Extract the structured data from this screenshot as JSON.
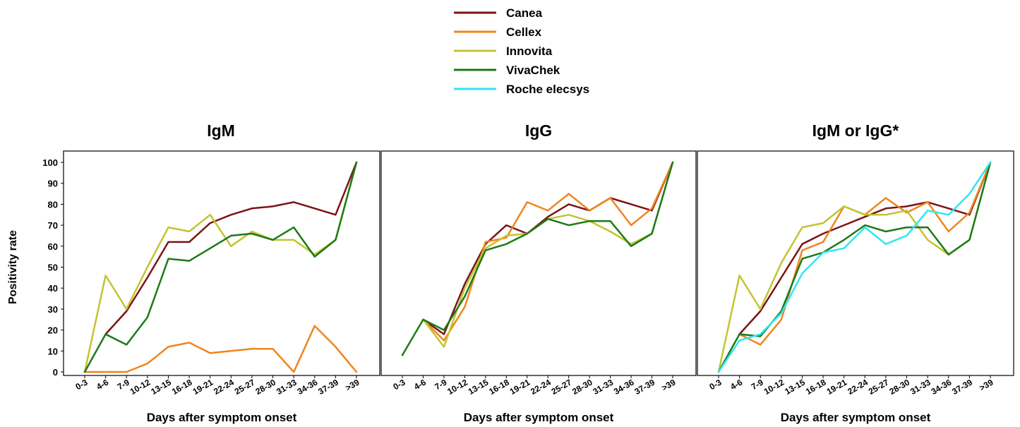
{
  "legend": {
    "items": [
      {
        "name": "Canea",
        "color": "#7b1416"
      },
      {
        "name": "Cellex",
        "color": "#f0851c"
      },
      {
        "name": "Innovita",
        "color": "#c3c430"
      },
      {
        "name": "VivaChek",
        "color": "#1d7a17"
      },
      {
        "name": "Roche elecsys",
        "color": "#2ee6f2"
      }
    ]
  },
  "chart_data": [
    {
      "type": "line",
      "title": "IgM",
      "xlabel": "Days after symptom onset",
      "ylabel": "Positivity rate",
      "ylim": [
        0,
        100
      ],
      "yticks": [
        0,
        10,
        20,
        30,
        40,
        50,
        60,
        70,
        80,
        90,
        100
      ],
      "categories": [
        "0-3",
        "4-6",
        "7-9",
        "10-12",
        "13-15",
        "16-18",
        "19-21",
        "22-24",
        "25-27",
        "28-30",
        "31-33",
        "34-36",
        "37-39",
        ">39"
      ],
      "series": [
        {
          "name": "Canea",
          "values": [
            null,
            18,
            29,
            45,
            62,
            62,
            71,
            75,
            78,
            79,
            81,
            78,
            75,
            100
          ]
        },
        {
          "name": "Cellex",
          "values": [
            0,
            0,
            0,
            4,
            12,
            14,
            9,
            10,
            11,
            11,
            0,
            22,
            12,
            0
          ]
        },
        {
          "name": "Innovita",
          "values": [
            0,
            46,
            30,
            50,
            69,
            67,
            75,
            60,
            67,
            63,
            63,
            56,
            63,
            100
          ]
        },
        {
          "name": "VivaChek",
          "values": [
            0,
            18,
            13,
            26,
            54,
            53,
            59,
            65,
            66,
            63,
            69,
            55,
            63,
            100
          ]
        }
      ]
    },
    {
      "type": "line",
      "title": "IgG",
      "xlabel": "Days after symptom onset",
      "ylim": [
        0,
        100
      ],
      "yticks": [
        0,
        10,
        20,
        30,
        40,
        50,
        60,
        70,
        80,
        90,
        100
      ],
      "categories": [
        "0-3",
        "4-6",
        "7-9",
        "10-12",
        "13-15",
        "16-18",
        "19-21",
        "22-24",
        "25-27",
        "28-30",
        "31-33",
        "34-36",
        "37-39",
        ">39"
      ],
      "series": [
        {
          "name": "Canea",
          "values": [
            null,
            25,
            18,
            42,
            61,
            70,
            66,
            74,
            80,
            77,
            83,
            80,
            77,
            100
          ]
        },
        {
          "name": "Cellex",
          "values": [
            null,
            25,
            15,
            31,
            62,
            64,
            81,
            77,
            85,
            77,
            83,
            70,
            78,
            100
          ]
        },
        {
          "name": "Innovita",
          "values": [
            null,
            25,
            12,
            40,
            59,
            65,
            66,
            73,
            75,
            72,
            67,
            61,
            66,
            100
          ]
        },
        {
          "name": "VivaChek",
          "values": [
            8,
            25,
            20,
            36,
            58,
            61,
            66,
            73,
            70,
            72,
            72,
            60,
            66,
            100
          ]
        }
      ]
    },
    {
      "type": "line",
      "title": "IgM or IgG*",
      "xlabel": "Days after symptom onset",
      "ylim": [
        0,
        100
      ],
      "yticks": [
        0,
        10,
        20,
        30,
        40,
        50,
        60,
        70,
        80,
        90,
        100
      ],
      "categories": [
        "0-3",
        "4-6",
        "7-9",
        "10-12",
        "13-15",
        "16-18",
        "19-21",
        "22-24",
        "25-27",
        "28-30",
        "31-33",
        "34-36",
        "37-39",
        ">39"
      ],
      "series": [
        {
          "name": "Canea",
          "values": [
            null,
            18,
            29,
            45,
            61,
            66,
            70,
            74,
            78,
            79,
            81,
            78,
            75,
            100
          ]
        },
        {
          "name": "Cellex",
          "values": [
            null,
            18,
            13,
            25,
            58,
            62,
            79,
            75,
            83,
            76,
            81,
            67,
            76,
            100
          ]
        },
        {
          "name": "Innovita",
          "values": [
            0,
            46,
            30,
            52,
            69,
            71,
            79,
            75,
            75,
            77,
            63,
            56,
            63,
            100
          ]
        },
        {
          "name": "VivaChek",
          "values": [
            0,
            18,
            17,
            29,
            54,
            57,
            63,
            70,
            67,
            69,
            69,
            56,
            63,
            100
          ]
        },
        {
          "name": "Roche elecsys",
          "values": [
            0,
            15,
            18,
            28,
            47,
            57,
            59,
            69,
            61,
            65,
            77,
            75,
            85,
            100
          ]
        }
      ]
    }
  ]
}
